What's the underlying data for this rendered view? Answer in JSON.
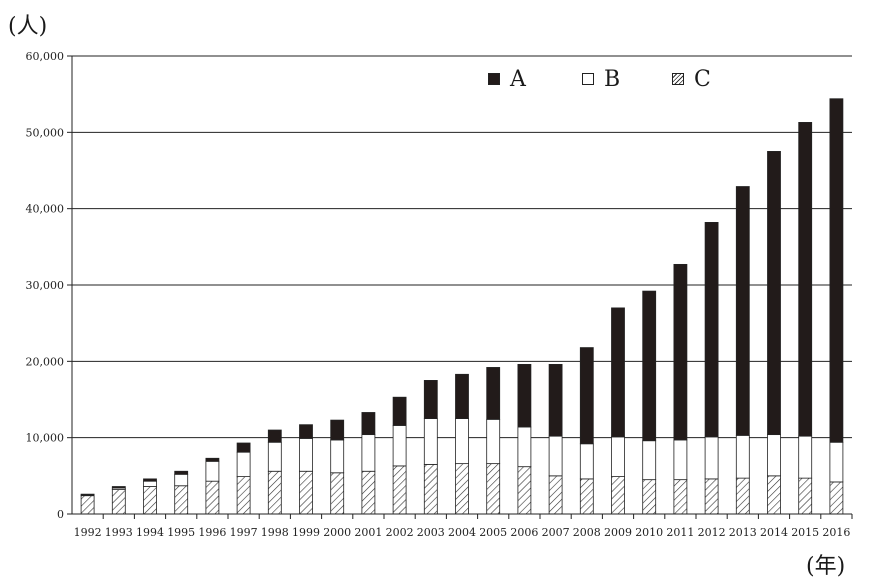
{
  "chart_data": {
    "type": "bar",
    "stacked": true,
    "title": "",
    "ylabel": "(人)",
    "xlabel": "(年)",
    "ylim": [
      0,
      60000
    ],
    "yticks": [
      0,
      10000,
      20000,
      30000,
      40000,
      50000,
      60000
    ],
    "ytick_labels": [
      "0",
      "10,000",
      "20,000",
      "30,000",
      "40,000",
      "50,000",
      "60,000"
    ],
    "grid": true,
    "legend_position": "top-right",
    "categories": [
      "1992",
      "1993",
      "1994",
      "1995",
      "1996",
      "1997",
      "1998",
      "1999",
      "2000",
      "2001",
      "2002",
      "2003",
      "2004",
      "2005",
      "2006",
      "2007",
      "2008",
      "2009",
      "2010",
      "2011",
      "2012",
      "2013",
      "2014",
      "2015",
      "2016"
    ],
    "series": [
      {
        "name": "C",
        "pattern": "hatched",
        "color": "#ffffff",
        "values": [
          2400,
          3200,
          3600,
          3700,
          4300,
          4900,
          5600,
          5600,
          5400,
          5600,
          6300,
          6500,
          6600,
          6600,
          6200,
          5000,
          4600,
          4900,
          4500,
          4500,
          4600,
          4700,
          5000,
          4700,
          4200
        ]
      },
      {
        "name": "B",
        "pattern": "solid",
        "color": "#ffffff",
        "values": [
          100,
          200,
          700,
          1500,
          2600,
          3200,
          3800,
          4300,
          4300,
          4800,
          5300,
          6000,
          5900,
          5800,
          5200,
          5200,
          4600,
          5200,
          5100,
          5200,
          5500,
          5600,
          5400,
          5500,
          5200
        ]
      },
      {
        "name": "A",
        "pattern": "solid",
        "color": "#221b1a",
        "values": [
          100,
          200,
          300,
          400,
          400,
          1200,
          1600,
          1800,
          2600,
          2900,
          3700,
          5000,
          5800,
          6800,
          8200,
          9400,
          12600,
          16900,
          19600,
          23000,
          28100,
          32600,
          37100,
          41100,
          45000
        ]
      }
    ]
  },
  "legend": {
    "a_label": "A",
    "b_label": "B",
    "c_label": "C"
  }
}
